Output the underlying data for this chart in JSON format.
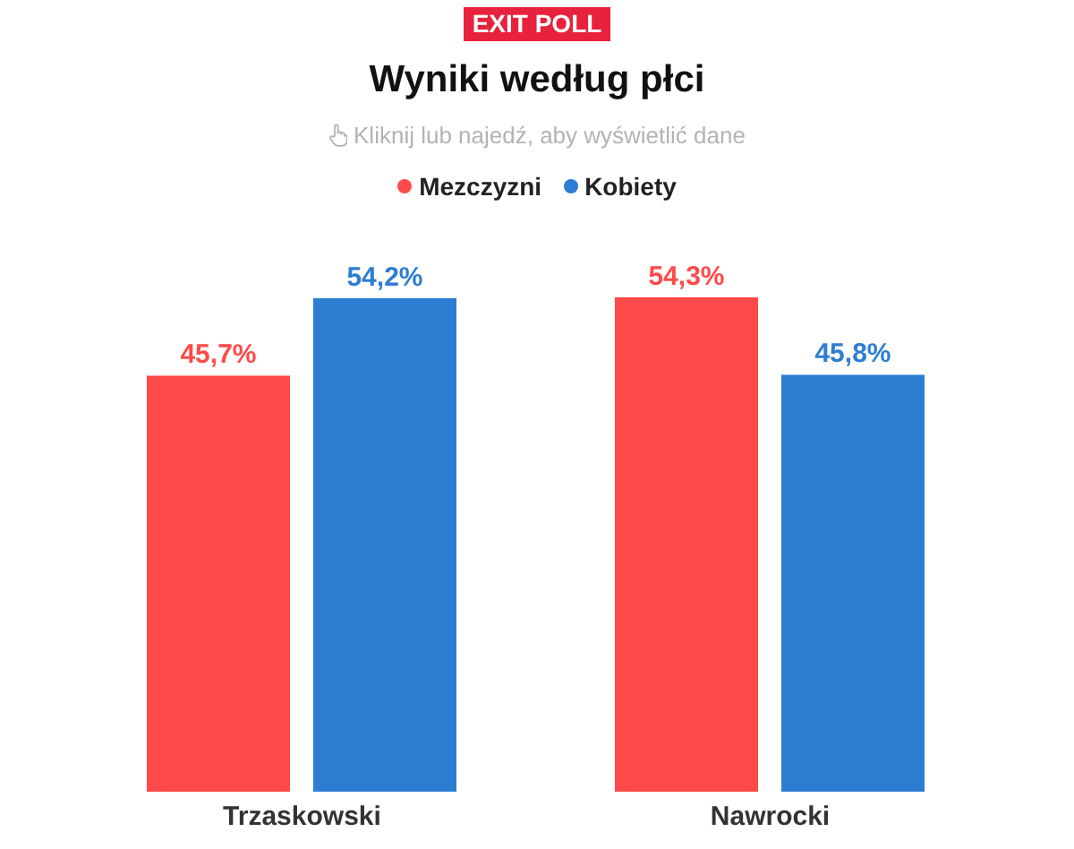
{
  "chart_data": {
    "type": "bar",
    "title": "Wyniki według płci",
    "subtitle": "Kliknij lub najedź, aby wyświetlić dane",
    "annotations": [
      "EXIT POLL"
    ],
    "categories": [
      "Trzaskowski",
      "Nawrocki"
    ],
    "series": [
      {
        "name": "Mezczyzni",
        "color": "#ff4a4a",
        "values": [
          45.7,
          54.3
        ],
        "value_labels": [
          "45,7%",
          "54,3%"
        ]
      },
      {
        "name": "Kobiety",
        "color": "#2d7dd2",
        "values": [
          54.2,
          45.8
        ],
        "value_labels": [
          "54,2%",
          "45,8%"
        ]
      }
    ],
    "legend": "top"
  }
}
